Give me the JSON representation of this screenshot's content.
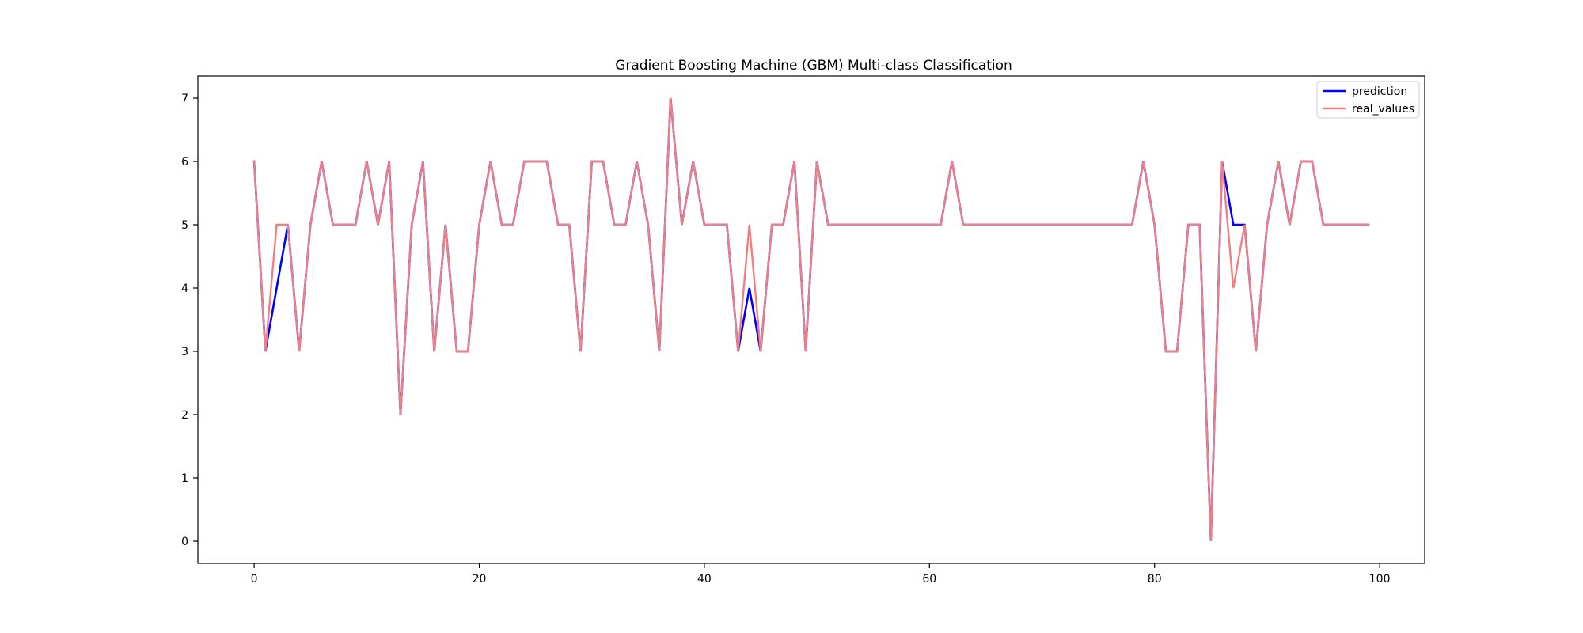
{
  "chart_data": {
    "type": "line",
    "title": "Gradient Boosting Machine (GBM) Multi-class Classification",
    "xlabel": "",
    "ylabel": "",
    "xlim": [
      -5,
      104
    ],
    "ylim": [
      -0.35,
      7.35
    ],
    "xticks": [
      0,
      20,
      40,
      60,
      80,
      100
    ],
    "yticks": [
      0,
      1,
      2,
      3,
      4,
      5,
      6,
      7
    ],
    "grid": false,
    "legend_position": "top-right",
    "x": [
      0,
      1,
      2,
      3,
      4,
      5,
      6,
      7,
      8,
      9,
      10,
      11,
      12,
      13,
      14,
      15,
      16,
      17,
      18,
      19,
      20,
      21,
      22,
      23,
      24,
      25,
      26,
      27,
      28,
      29,
      30,
      31,
      32,
      33,
      34,
      35,
      36,
      37,
      38,
      39,
      40,
      41,
      42,
      43,
      44,
      45,
      46,
      47,
      48,
      49,
      50,
      51,
      52,
      53,
      54,
      55,
      56,
      57,
      58,
      59,
      60,
      61,
      62,
      63,
      64,
      65,
      66,
      67,
      68,
      69,
      70,
      71,
      72,
      73,
      74,
      75,
      76,
      77,
      78,
      79,
      80,
      81,
      82,
      83,
      84,
      85,
      86,
      87,
      88,
      89,
      90,
      91,
      92,
      93,
      94,
      95,
      96,
      97,
      98,
      99
    ],
    "series": [
      {
        "name": "prediction",
        "color": "#0000ff",
        "values": [
          6,
          3,
          4,
          5,
          3,
          5,
          6,
          5,
          5,
          5,
          6,
          5,
          6,
          2,
          5,
          6,
          3,
          5,
          3,
          3,
          5,
          6,
          5,
          5,
          6,
          6,
          6,
          5,
          5,
          3,
          6,
          6,
          5,
          5,
          6,
          5,
          3,
          7,
          5,
          6,
          5,
          5,
          5,
          3,
          4,
          3,
          5,
          5,
          6,
          3,
          6,
          5,
          5,
          5,
          5,
          5,
          5,
          5,
          5,
          5,
          5,
          5,
          6,
          5,
          5,
          5,
          5,
          5,
          5,
          5,
          5,
          5,
          5,
          5,
          5,
          5,
          5,
          5,
          5,
          6,
          5,
          3,
          3,
          5,
          5,
          0,
          6,
          5,
          5,
          3,
          5,
          6,
          5,
          6,
          6,
          5,
          5,
          5,
          5,
          5
        ]
      },
      {
        "name": "real_values",
        "color": "#f08080",
        "values": [
          6,
          3,
          5,
          5,
          3,
          5,
          6,
          5,
          5,
          5,
          6,
          5,
          6,
          2,
          5,
          6,
          3,
          5,
          3,
          3,
          5,
          6,
          5,
          5,
          6,
          6,
          6,
          5,
          5,
          3,
          6,
          6,
          5,
          5,
          6,
          5,
          3,
          7,
          5,
          6,
          5,
          5,
          5,
          3,
          5,
          3,
          5,
          5,
          6,
          3,
          6,
          5,
          5,
          5,
          5,
          5,
          5,
          5,
          5,
          5,
          5,
          5,
          6,
          5,
          5,
          5,
          5,
          5,
          5,
          5,
          5,
          5,
          5,
          5,
          5,
          5,
          5,
          5,
          5,
          6,
          5,
          3,
          3,
          5,
          5,
          0,
          6,
          4,
          5,
          3,
          5,
          6,
          5,
          6,
          6,
          5,
          5,
          5,
          5,
          5
        ]
      }
    ]
  }
}
